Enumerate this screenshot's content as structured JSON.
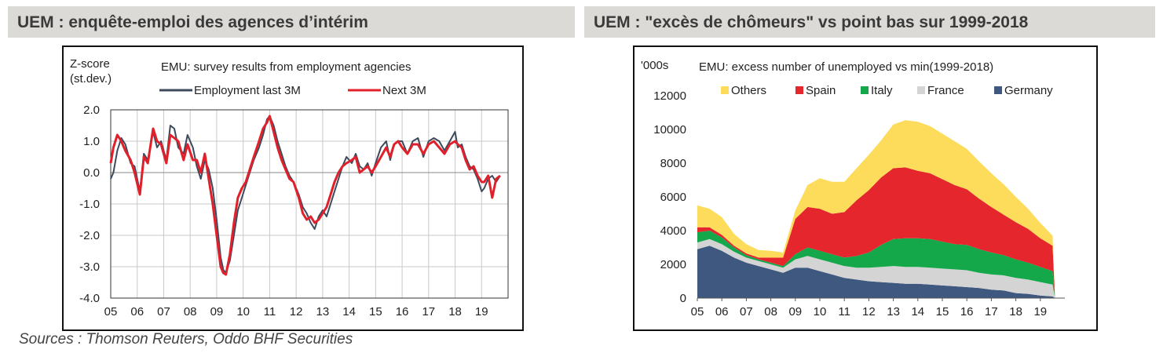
{
  "header": {
    "left_title": "UEM : enquête-emploi des agences d’intérim",
    "right_title": "UEM : \"excès de chômeurs\" vs point bas sur 1999-2018"
  },
  "footer": {
    "sources": "Sources : Thomson Reuters, Oddo BHF Securities"
  },
  "chart_data": [
    {
      "type": "line",
      "title": "EMU: survey results from employment agencies",
      "ylabel": "Z-score (st.dev.)",
      "ylabel_lines": [
        "Z-score",
        "(st.dev.)"
      ],
      "ylim": [
        -4.0,
        2.0
      ],
      "yticks": [
        "2.0",
        "1.0",
        "0.0",
        "-1.0",
        "-2.0",
        "-3.0",
        "-4.0"
      ],
      "xticks": [
        "05",
        "06",
        "07",
        "08",
        "09",
        "10",
        "11",
        "12",
        "13",
        "14",
        "15",
        "16",
        "17",
        "18",
        "19"
      ],
      "xlim": [
        2005.0,
        2020.0
      ],
      "grid": true,
      "legend_position": "top",
      "colors": {
        "employment": "#3d4a5c",
        "next": "#e0202a"
      },
      "series": [
        {
          "name": "Employment last 3M",
          "x": [
            2005.0,
            2005.1,
            2005.25,
            2005.4,
            2005.55,
            2005.75,
            2005.9,
            2006.1,
            2006.25,
            2006.4,
            2006.6,
            2006.75,
            2006.9,
            2007.1,
            2007.25,
            2007.4,
            2007.55,
            2007.75,
            2007.9,
            2008.1,
            2008.25,
            2008.4,
            2008.55,
            2008.7,
            2008.85,
            2009.0,
            2009.15,
            2009.25,
            2009.35,
            2009.5,
            2009.65,
            2009.8,
            2009.95,
            2010.1,
            2010.25,
            2010.4,
            2010.6,
            2010.75,
            2010.9,
            2011.0,
            2011.15,
            2011.3,
            2011.45,
            2011.6,
            2011.75,
            2011.9,
            2012.1,
            2012.25,
            2012.4,
            2012.55,
            2012.7,
            2012.85,
            2013.0,
            2013.15,
            2013.3,
            2013.45,
            2013.6,
            2013.75,
            2013.9,
            2014.1,
            2014.25,
            2014.4,
            2014.55,
            2014.7,
            2014.85,
            2015.0,
            2015.2,
            2015.4,
            2015.55,
            2015.7,
            2015.85,
            2016.0,
            2016.2,
            2016.4,
            2016.6,
            2016.8,
            2017.0,
            2017.2,
            2017.4,
            2017.6,
            2017.8,
            2018.0,
            2018.1,
            2018.25,
            2018.4,
            2018.55,
            2018.7,
            2018.85,
            2019.0,
            2019.1,
            2019.25,
            2019.4,
            2019.55,
            2019.7
          ],
          "values": [
            -0.2,
            0.0,
            0.7,
            1.1,
            0.9,
            0.3,
            0.2,
            -0.6,
            0.6,
            0.4,
            1.3,
            0.8,
            1.0,
            0.4,
            1.5,
            1.4,
            0.8,
            0.6,
            1.2,
            0.8,
            0.2,
            -0.2,
            0.4,
            0.1,
            -0.5,
            -1.5,
            -2.7,
            -3.1,
            -3.2,
            -2.8,
            -2.0,
            -1.2,
            -0.8,
            -0.4,
            0.0,
            0.4,
            0.8,
            1.2,
            1.7,
            1.8,
            1.5,
            1.0,
            0.6,
            0.2,
            -0.1,
            -0.3,
            -0.7,
            -1.1,
            -1.3,
            -1.6,
            -1.8,
            -1.4,
            -1.2,
            -1.4,
            -1.0,
            -0.6,
            -0.2,
            0.2,
            0.5,
            0.3,
            0.6,
            0.2,
            0.1,
            0.3,
            -0.1,
            0.3,
            0.8,
            1.0,
            0.4,
            0.9,
            1.0,
            1.0,
            0.6,
            1.0,
            1.1,
            0.5,
            1.0,
            1.1,
            1.0,
            0.7,
            1.0,
            1.3,
            0.8,
            0.9,
            0.5,
            0.2,
            0.1,
            -0.2,
            -0.6,
            -0.5,
            -0.2,
            -0.1,
            -0.3,
            -0.1
          ]
        },
        {
          "name": "Next 3M",
          "x": [
            2005.0,
            2005.1,
            2005.25,
            2005.4,
            2005.55,
            2005.75,
            2005.9,
            2006.1,
            2006.25,
            2006.4,
            2006.6,
            2006.75,
            2006.9,
            2007.1,
            2007.25,
            2007.4,
            2007.55,
            2007.75,
            2007.9,
            2008.1,
            2008.25,
            2008.4,
            2008.55,
            2008.7,
            2008.85,
            2009.0,
            2009.15,
            2009.25,
            2009.35,
            2009.5,
            2009.65,
            2009.8,
            2009.95,
            2010.1,
            2010.25,
            2010.4,
            2010.6,
            2010.75,
            2010.9,
            2011.0,
            2011.15,
            2011.3,
            2011.45,
            2011.6,
            2011.75,
            2011.9,
            2012.1,
            2012.25,
            2012.4,
            2012.55,
            2012.7,
            2012.85,
            2013.0,
            2013.15,
            2013.3,
            2013.45,
            2013.6,
            2013.75,
            2013.9,
            2014.1,
            2014.25,
            2014.4,
            2014.55,
            2014.7,
            2014.85,
            2015.0,
            2015.2,
            2015.4,
            2015.55,
            2015.7,
            2015.85,
            2016.0,
            2016.2,
            2016.4,
            2016.6,
            2016.8,
            2017.0,
            2017.2,
            2017.4,
            2017.6,
            2017.8,
            2018.0,
            2018.1,
            2018.25,
            2018.4,
            2018.55,
            2018.7,
            2018.85,
            2019.0,
            2019.1,
            2019.25,
            2019.4,
            2019.55,
            2019.7
          ],
          "values": [
            0.3,
            0.8,
            1.2,
            1.0,
            0.7,
            0.4,
            0.0,
            -0.7,
            0.5,
            0.3,
            1.4,
            1.0,
            0.9,
            0.3,
            1.2,
            1.1,
            1.0,
            0.4,
            0.9,
            0.4,
            0.4,
            0.0,
            0.6,
            -0.2,
            -1.0,
            -2.0,
            -3.0,
            -3.2,
            -3.25,
            -2.6,
            -1.6,
            -0.8,
            -0.5,
            -0.3,
            0.1,
            0.5,
            1.0,
            1.4,
            1.6,
            1.8,
            1.3,
            0.8,
            0.4,
            0.1,
            -0.2,
            -0.3,
            -0.8,
            -1.3,
            -1.5,
            -1.4,
            -1.6,
            -1.5,
            -1.3,
            -1.1,
            -0.7,
            -0.3,
            0.0,
            0.2,
            0.3,
            0.4,
            0.5,
            0.0,
            0.1,
            0.2,
            0.0,
            0.2,
            0.5,
            0.8,
            0.5,
            0.9,
            1.0,
            0.8,
            0.6,
            0.9,
            0.9,
            0.6,
            0.9,
            1.0,
            0.8,
            0.6,
            0.9,
            1.0,
            0.9,
            0.8,
            0.4,
            0.1,
            0.2,
            -0.1,
            -0.3,
            -0.3,
            -0.1,
            -0.8,
            -0.2,
            -0.1
          ]
        }
      ]
    },
    {
      "type": "area",
      "stacked": true,
      "title": "EMU: excess number of unemployed vs min(1999-2018)",
      "ylabel": "'000s",
      "ylim": [
        0,
        12000
      ],
      "yticks": [
        "12000",
        "10000",
        "8000",
        "6000",
        "4000",
        "2000",
        "0"
      ],
      "xticks": [
        "05",
        "06",
        "07",
        "08",
        "09",
        "10",
        "11",
        "12",
        "13",
        "14",
        "15",
        "16",
        "17",
        "18",
        "19"
      ],
      "xlim": [
        2005.0,
        2020.0
      ],
      "grid": false,
      "legend_position": "top",
      "x": [
        2005.0,
        2005.5,
        2006.0,
        2006.5,
        2007.0,
        2007.5,
        2008.0,
        2008.5,
        2009.0,
        2009.5,
        2010.0,
        2010.5,
        2011.0,
        2011.5,
        2012.0,
        2012.5,
        2013.0,
        2013.5,
        2014.0,
        2014.5,
        2015.0,
        2015.5,
        2016.0,
        2016.5,
        2017.0,
        2017.5,
        2018.0,
        2018.5,
        2019.0,
        2019.5
      ],
      "series": [
        {
          "name": "Germany",
          "color": "#3f587f",
          "values": [
            2900,
            3100,
            2800,
            2400,
            2100,
            1900,
            1700,
            1500,
            1800,
            1800,
            1600,
            1400,
            1200,
            1100,
            1000,
            950,
            900,
            850,
            850,
            800,
            750,
            700,
            650,
            600,
            500,
            450,
            300,
            250,
            150,
            100
          ]
        },
        {
          "name": "France",
          "color": "#d4d4d4",
          "values": [
            400,
            400,
            400,
            350,
            300,
            300,
            300,
            300,
            500,
            700,
            700,
            700,
            700,
            700,
            800,
            900,
            1000,
            1000,
            1000,
            1000,
            1000,
            1000,
            1000,
            900,
            900,
            900,
            900,
            850,
            800,
            700
          ]
        },
        {
          "name": "Italy",
          "color": "#14a84a",
          "values": [
            600,
            500,
            400,
            250,
            150,
            100,
            100,
            100,
            300,
            500,
            500,
            500,
            500,
            700,
            900,
            1300,
            1600,
            1700,
            1700,
            1700,
            1600,
            1500,
            1500,
            1400,
            1300,
            1200,
            1100,
            1000,
            900,
            800
          ]
        },
        {
          "name": "Spain",
          "color": "#e5262d",
          "values": [
            300,
            200,
            150,
            100,
            100,
            100,
            300,
            500,
            2100,
            2400,
            2500,
            2400,
            2700,
            3300,
            3700,
            4000,
            4200,
            4200,
            4000,
            3900,
            3700,
            3500,
            3300,
            3000,
            2700,
            2400,
            2200,
            2000,
            1700,
            1500
          ]
        },
        {
          "name": "Others",
          "color": "#fddc5c",
          "values": [
            1300,
            1100,
            1050,
            700,
            550,
            450,
            400,
            300,
            500,
            1300,
            1800,
            1900,
            1800,
            1900,
            2100,
            2200,
            2600,
            2800,
            2900,
            2800,
            2700,
            2600,
            2400,
            2200,
            2000,
            1800,
            1500,
            1200,
            900,
            600
          ]
        }
      ]
    }
  ]
}
